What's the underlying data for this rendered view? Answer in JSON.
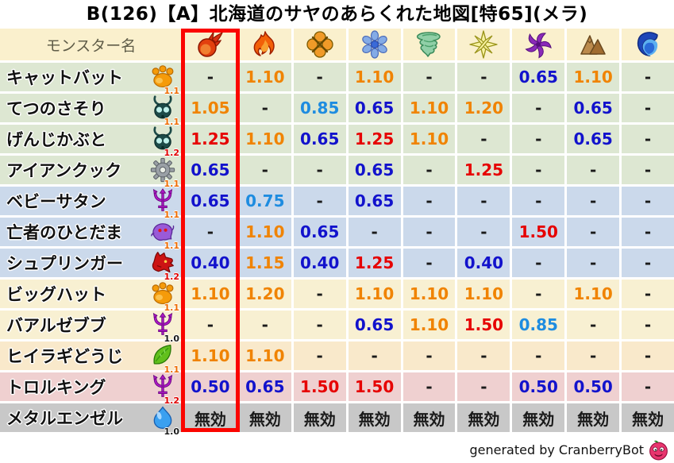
{
  "title": "B(126)【A】北海道のサヤのあらくれた地図[特65](メラ)",
  "chart_data": {
    "type": "table",
    "monster_name_header": "モンスター名",
    "columns": [
      {
        "icon": "fireball-icon",
        "highlighted": true
      },
      {
        "icon": "flame-icon",
        "highlighted": false
      },
      {
        "icon": "burst-icon",
        "highlighted": false
      },
      {
        "icon": "snowflake-icon",
        "highlighted": false
      },
      {
        "icon": "tornado-icon",
        "highlighted": false
      },
      {
        "icon": "sparkle-icon",
        "highlighted": false
      },
      {
        "icon": "pinwheel-icon",
        "highlighted": false
      },
      {
        "icon": "mountain-icon",
        "highlighted": false
      },
      {
        "icon": "wave-icon",
        "highlighted": false
      }
    ],
    "rows": [
      {
        "name": "キャットバット",
        "icon": "paw-icon",
        "badge": "1.1",
        "badge_color": "#ee6b00",
        "row_color": "#dde7d2",
        "values": [
          "-",
          "1.10",
          "-",
          "1.10",
          "-",
          "-",
          "0.65",
          "1.10",
          "-"
        ]
      },
      {
        "name": "てつのさそり",
        "icon": "bug-icon",
        "badge": "1.1",
        "badge_color": "#ee6b00",
        "row_color": "#dde7d2",
        "values": [
          "1.05",
          "-",
          "0.85",
          "0.65",
          "1.10",
          "1.20",
          "-",
          "0.65",
          "-"
        ]
      },
      {
        "name": "げんじかぶと",
        "icon": "bug-icon",
        "badge": "1.2",
        "badge_color": "#e00000",
        "row_color": "#dde7d2",
        "values": [
          "1.25",
          "1.10",
          "0.65",
          "1.25",
          "1.10",
          "-",
          "-",
          "0.65",
          "-"
        ]
      },
      {
        "name": "アイアンクック",
        "icon": "gear-icon",
        "badge": "1.1",
        "badge_color": "#ee6b00",
        "row_color": "#dde7d2",
        "values": [
          "0.65",
          "-",
          "-",
          "0.65",
          "-",
          "1.25",
          "-",
          "-",
          "-"
        ]
      },
      {
        "name": "ベビーサタン",
        "icon": "trident-icon",
        "badge": "1.1",
        "badge_color": "#ee6b00",
        "row_color": "#cbd9eb",
        "values": [
          "0.65",
          "0.75",
          "-",
          "0.65",
          "-",
          "-",
          "-",
          "-",
          "-"
        ]
      },
      {
        "name": "亡者のひとだま",
        "icon": "ghost-icon",
        "badge": "1.1",
        "badge_color": "#ee6b00",
        "row_color": "#cbd9eb",
        "values": [
          "-",
          "1.10",
          "0.65",
          "-",
          "-",
          "-",
          "1.50",
          "-",
          "-"
        ]
      },
      {
        "name": "シュプリンガー",
        "icon": "dragon-icon",
        "badge": "1.2",
        "badge_color": "#e00000",
        "row_color": "#cbd9eb",
        "values": [
          "0.40",
          "1.15",
          "0.40",
          "1.25",
          "-",
          "0.40",
          "-",
          "-",
          "-"
        ]
      },
      {
        "name": "ビッグハット",
        "icon": "paw-icon",
        "badge": "1.1",
        "badge_color": "#ee6b00",
        "row_color": "#f8f0d2",
        "values": [
          "1.10",
          "1.20",
          "-",
          "1.10",
          "1.10",
          "1.10",
          "-",
          "1.10",
          "-"
        ]
      },
      {
        "name": "バアルゼブブ",
        "icon": "trident-icon",
        "badge": "1.0",
        "badge_color": "#1a1a1a",
        "row_color": "#f8f0d2",
        "values": [
          "-",
          "-",
          "-",
          "0.65",
          "1.10",
          "1.50",
          "0.85",
          "-",
          "-"
        ]
      },
      {
        "name": "ヒイラギどうじ",
        "icon": "leaf-icon",
        "badge": "1.1",
        "badge_color": "#ee6b00",
        "row_color": "#f9e9cb",
        "values": [
          "1.10",
          "1.10",
          "-",
          "-",
          "-",
          "-",
          "-",
          "-",
          "-"
        ]
      },
      {
        "name": "トロルキング",
        "icon": "trident-icon",
        "badge": "1.2",
        "badge_color": "#e00000",
        "row_color": "#efd0d0",
        "values": [
          "0.50",
          "0.65",
          "1.50",
          "1.50",
          "-",
          "-",
          "0.50",
          "0.50",
          "-"
        ]
      },
      {
        "name": "メタルエンゼル",
        "icon": "slime-icon",
        "badge": "1.0",
        "badge_color": "#1a1a1a",
        "row_color": "#c8c8c8",
        "values": [
          "無効",
          "無効",
          "無効",
          "無効",
          "無効",
          "無効",
          "無効",
          "無効",
          "無効"
        ]
      }
    ]
  },
  "colors": {
    "header_bg": "#faf0cd",
    "value_black": "#1a1a1a",
    "value_blue": "#1212cc",
    "value_lightblue": "#1e8ce0",
    "value_orange": "#f08300",
    "value_red": "#e60000",
    "highlight_box": "#fb0500"
  },
  "footer": {
    "text": "generated by CranberryBot",
    "icon": "cranberry-slime-icon"
  }
}
